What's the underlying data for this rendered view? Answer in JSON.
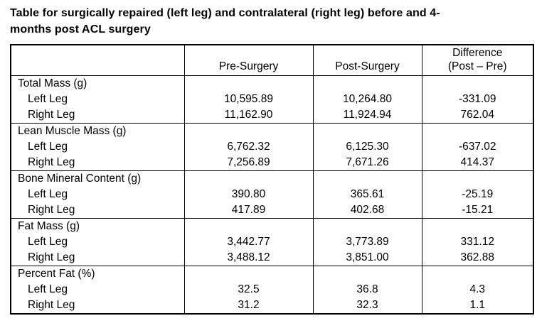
{
  "title": "Table for surgically repaired (left leg) and contralateral (right leg) before and 4-\nmonths post ACL surgery",
  "table": {
    "header": {
      "row_label_col": "",
      "pre": "Pre-Surgery",
      "post": "Post-Surgery",
      "diff_line1": "Difference",
      "diff_line2": "(Post – Pre)"
    },
    "sections": [
      {
        "label": "Total Mass (g)",
        "rows": [
          {
            "label": "Left Leg",
            "pre": "10,595.89",
            "post": "10,264.80",
            "diff": "-331.09"
          },
          {
            "label": "Right Leg",
            "pre": "11,162.90",
            "post": "11,924.94",
            "diff": "762.04"
          }
        ]
      },
      {
        "label": "Lean Muscle Mass (g)",
        "rows": [
          {
            "label": "Left Leg",
            "pre": "6,762.32",
            "post": "6,125.30",
            "diff": "-637.02"
          },
          {
            "label": "Right Leg",
            "pre": "7,256.89",
            "post": "7,671.26",
            "diff": "414.37"
          }
        ]
      },
      {
        "label": "Bone Mineral Content (g)",
        "rows": [
          {
            "label": "Left Leg",
            "pre": "390.80",
            "post": "365.61",
            "diff": "-25.19"
          },
          {
            "label": "Right Leg",
            "pre": "417.89",
            "post": "402.68",
            "diff": "-15.21"
          }
        ]
      },
      {
        "label": "Fat Mass (g)",
        "rows": [
          {
            "label": "Left Leg",
            "pre": "3,442.77",
            "post": "3,773.89",
            "diff": "331.12"
          },
          {
            "label": "Right Leg",
            "pre": "3,488.12",
            "post": "3,851.00",
            "diff": "362.88"
          }
        ]
      },
      {
        "label": "Percent Fat (%)",
        "rows": [
          {
            "label": "Left Leg",
            "pre": "32.5",
            "post": "36.8",
            "diff": "4.3"
          },
          {
            "label": "Right Leg",
            "pre": "31.2",
            "post": "32.3",
            "diff": "1.1"
          }
        ]
      }
    ]
  }
}
